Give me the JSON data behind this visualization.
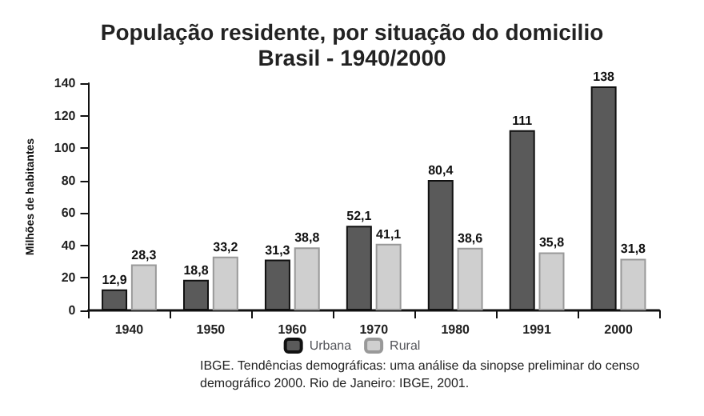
{
  "chart_data": {
    "type": "bar",
    "title": "População residente, por situação do domicilio",
    "subtitle": "Brasil - 1940/2000",
    "ylabel": "Milhões de habitantes",
    "categories": [
      "1940",
      "1950",
      "1960",
      "1970",
      "1980",
      "1991",
      "2000"
    ],
    "series": [
      {
        "name": "Urbana",
        "color": "#5a5a5a",
        "values": [
          12.9,
          18.8,
          31.3,
          52.1,
          80.4,
          111,
          138
        ],
        "value_labels": [
          "12,9",
          "18,8",
          "31,3",
          "52,1",
          "80,4",
          "111",
          "138"
        ]
      },
      {
        "name": "Rural",
        "color": "#cfcfcf",
        "values": [
          28.3,
          33.2,
          38.8,
          41.1,
          38.6,
          35.8,
          31.8
        ],
        "value_labels": [
          "28,3",
          "33,2",
          "38,8",
          "41,1",
          "38,6",
          "35,8",
          "31,8"
        ]
      }
    ],
    "ylim": [
      0,
      140
    ],
    "yticks": [
      0,
      20,
      40,
      60,
      80,
      100,
      120,
      140
    ],
    "grid": false,
    "legend": "bottom",
    "annotations": [
      "IBGE. Tendências demográficas: uma análise da sinopse preliminar do censo demográfico 2000. Rio de Janeiro: IBGE, 2001."
    ]
  }
}
